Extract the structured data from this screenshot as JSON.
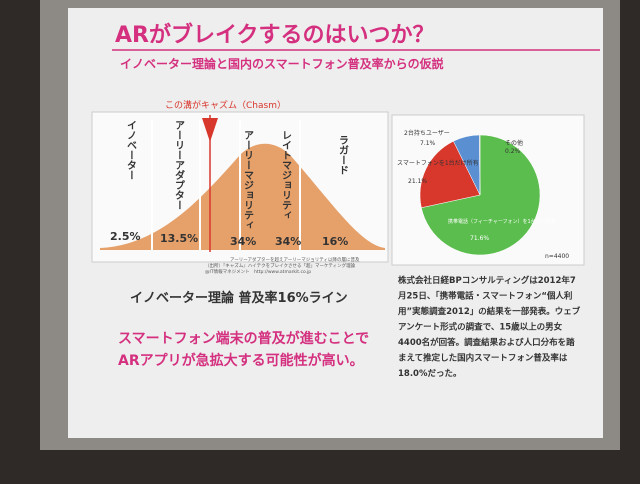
{
  "slide": {
    "title": "ARがブレイクするのはいつか？",
    "subtitle": "イノベーター理論と国内のスマートフォン普及率からの仮説",
    "chasm_label": "この溝がキャズム（Chasm）",
    "segments": [
      {
        "name": "イノベーター",
        "share": "2.5%"
      },
      {
        "name": "アーリーアダプター",
        "share": "13.5%"
      },
      {
        "name": "アーリーマジョリティ",
        "share": "34%"
      },
      {
        "name": "レイトマジョリティ",
        "share": "34%"
      },
      {
        "name": "ラガード",
        "share": "16%"
      }
    ],
    "caption": [
      "アーリーアダプターを超えアーリーマジョリティ以降の層に普及",
      "（出所）『キャズム』ハイテクをブレイクさせる「超」マーケティング理論",
      "@IT情報マネジメント　http://www.atmarkit.co.jp"
    ],
    "line_label": "イノベーター理論 普及率16%ライン",
    "conclusion": [
      "スマートフォン端末の普及が進むことで",
      "ARアプリが急拡大する可能性が高い。"
    ],
    "source_text": [
      "株式会社日経BPコンサルティングは2012年7",
      "月25日、「携帯電話・スマートフォン“個人利",
      "用”実態調査2012」の結果を一部発表。ウェブ",
      "アンケート形式の調査で、15歳以上の男女",
      "4400名が回答。調査結果および人口分布を踏",
      "まえて推定した国内スマートフォン普及率は",
      "18.0%だった。"
    ]
  },
  "chart_data": {
    "type": "pie",
    "categories": [
      "携帯電話（フィーチャーフォン）を1台だけ所有",
      "スマートフォンを1台だけ所有",
      "2台持ちユーザー",
      "その他"
    ],
    "values": [
      71.6,
      21.1,
      7.1,
      0.2
    ],
    "value_labels": [
      "71.6%",
      "21.1%",
      "7.1%",
      "0.2%"
    ],
    "colors": [
      "#5bbd4e",
      "#d8372c",
      "#5a8fd2",
      "#9a9a9a"
    ],
    "note": "n=4400"
  }
}
